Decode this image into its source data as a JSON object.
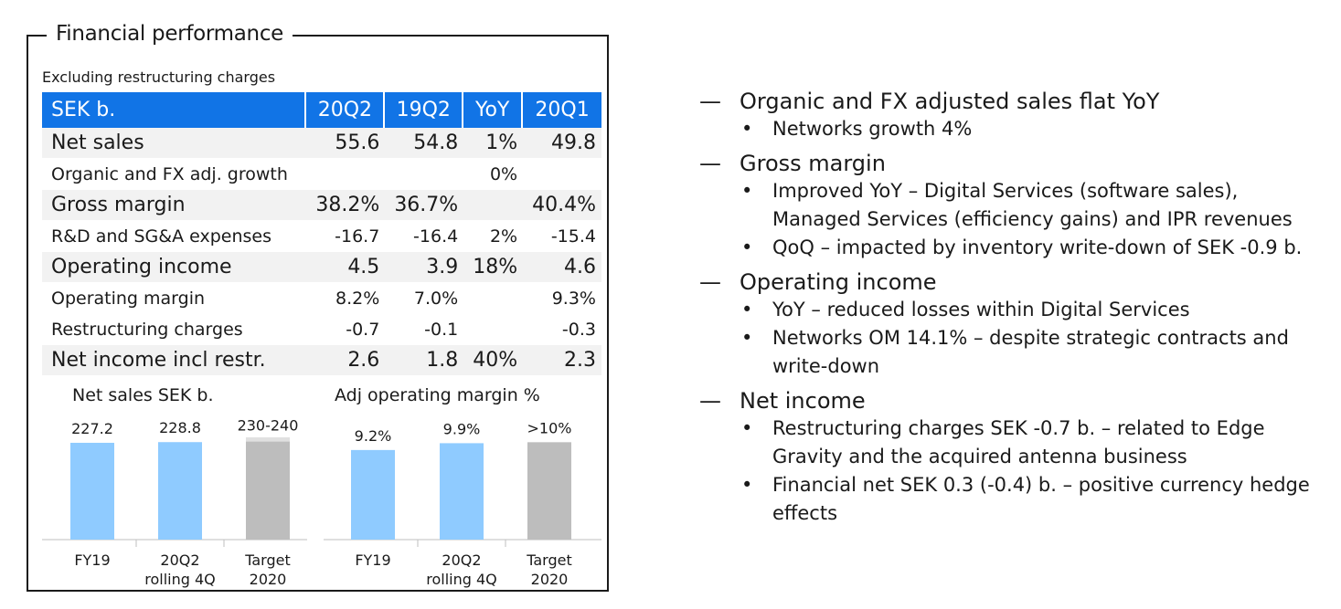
{
  "panel": {
    "title": "Financial performance",
    "subtitle": "Excluding restructuring charges"
  },
  "table": {
    "header": [
      "SEK b.",
      "20Q2",
      "19Q2",
      "YoY",
      "20Q1"
    ],
    "rows": [
      [
        "Net sales",
        "55.6",
        "54.8",
        "1%",
        "49.8"
      ],
      [
        "Organic and FX adj. growth",
        "",
        "",
        "0%",
        ""
      ],
      [
        "Gross margin",
        "38.2%",
        "36.7%",
        "",
        "40.4%"
      ],
      [
        "R&D and SG&A expenses",
        "-16.7",
        "-16.4",
        "2%",
        "-15.4"
      ],
      [
        "Operating income",
        "4.5",
        "3.9",
        "18%",
        "4.6"
      ],
      [
        "Operating margin",
        "8.2%",
        "7.0%",
        "",
        "9.3%"
      ],
      [
        "Restructuring charges",
        "-0.7",
        "-0.1",
        "",
        "-0.3"
      ],
      [
        "Net income incl restr.",
        "2.6",
        "1.8",
        "40%",
        "2.3"
      ]
    ]
  },
  "colors": {
    "header_blue": "#1174e6",
    "bar_blue": "#8fcbff",
    "bar_gray": "#bdbdbd",
    "row_alt": "#f2f2f2"
  },
  "chart_data": [
    {
      "type": "bar",
      "title": "Net sales SEK b.",
      "categories": [
        [
          "FY19"
        ],
        [
          "20Q2",
          "rolling 4Q"
        ],
        [
          "Target",
          "2020"
        ]
      ],
      "values": [
        227.2,
        228.8,
        235
      ],
      "labels": [
        "227.2",
        "228.8",
        "230-240"
      ],
      "range_low_high": [
        230,
        240
      ],
      "styles": [
        "actual",
        "actual",
        "target"
      ],
      "ylim": [
        0,
        240
      ]
    },
    {
      "type": "bar",
      "title": "Adj operating margin %",
      "categories": [
        [
          "FY19"
        ],
        [
          "20Q2",
          "rolling 4Q"
        ],
        [
          "Target",
          "2020"
        ]
      ],
      "values": [
        9.2,
        9.9,
        10
      ],
      "labels": [
        "9.2%",
        "9.9%",
        ">10%"
      ],
      "styles": [
        "actual",
        "actual",
        "target"
      ],
      "ylim": [
        0,
        10.5
      ]
    }
  ],
  "bullets": [
    {
      "heading": "Organic and FX adjusted sales flat YoY",
      "items": [
        "Networks growth 4%"
      ]
    },
    {
      "heading": "Gross margin",
      "items": [
        "Improved YoY – Digital Services (software sales), Managed Services (efficiency gains) and IPR revenues",
        "QoQ – impacted by inventory write-down of SEK -0.9 b."
      ]
    },
    {
      "heading": "Operating income",
      "items": [
        "YoY – reduced losses within Digital Services",
        "Networks OM 14.1% – despite strategic contracts and write-down"
      ]
    },
    {
      "heading": "Net income",
      "items": [
        "Restructuring charges SEK -0.7 b. – related to Edge Gravity and the acquired antenna business",
        "Financial net SEK 0.3 (-0.4) b. – positive currency hedge effects"
      ]
    }
  ],
  "symbols": {
    "dash": "—",
    "dot": "•"
  }
}
